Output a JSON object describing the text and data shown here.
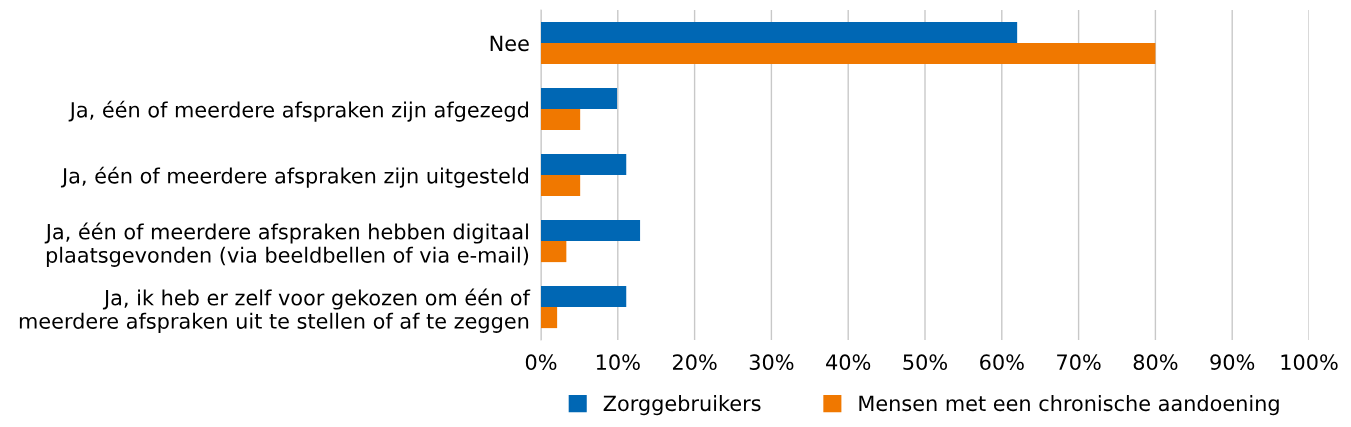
{
  "chart_data": {
    "type": "bar",
    "orientation": "horizontal",
    "categories": [
      "Nee",
      "Ja, één of meerdere afspraken zijn afgezegd",
      "Ja, één of meerdere afspraken zijn uitgesteld",
      "Ja, één of meerdere afspraken hebben digitaal\nplaatsgevonden (via beeldbellen of via e-mail)",
      "Ja, ik heb er zelf voor gekozen om één of\nmeerdere afspraken uit te stellen of af te zeggen"
    ],
    "series": [
      {
        "name": "Zorggebruikers",
        "color": "#0067b4",
        "values": [
          62,
          9.9,
          11.1,
          12.9,
          11.1
        ]
      },
      {
        "name": "Mensen met een chronische aandoening",
        "color": "#f07800",
        "values": [
          80,
          5.1,
          5.1,
          3.3,
          2.1
        ]
      }
    ],
    "xlim": [
      0,
      100
    ],
    "xticks": [
      {
        "value": 0,
        "label": "0%"
      },
      {
        "value": 10,
        "label": "10%"
      },
      {
        "value": 20,
        "label": "20%"
      },
      {
        "value": 30,
        "label": "30%"
      },
      {
        "value": 40,
        "label": "40%"
      },
      {
        "value": 50,
        "label": "50%"
      },
      {
        "value": 60,
        "label": "60%"
      },
      {
        "value": 70,
        "label": "70%"
      },
      {
        "value": 80,
        "label": "80%"
      },
      {
        "value": 90,
        "label": "90%"
      },
      {
        "value": 100,
        "label": "100%"
      }
    ],
    "grid": "x",
    "legend": "bottom"
  }
}
